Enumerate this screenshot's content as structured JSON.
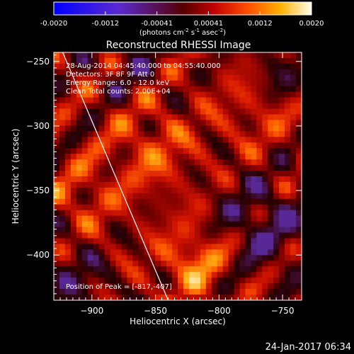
{
  "colorbar": {
    "ticks": [
      "-0.0020",
      "-0.0012",
      "-0.00041",
      "0.00041",
      "0.0012",
      "0.0020"
    ],
    "unit_label_parts": [
      "(photons cm",
      "-2",
      " s",
      "-1",
      " asec",
      "-2",
      ")"
    ]
  },
  "chart_data": {
    "type": "heatmap",
    "title": "Reconstructed RHESSI Image",
    "xlabel": "Heliocentric X (arcsec)",
    "ylabel": "Heliocentric Y (arcsec)",
    "xlim": [
      -930,
      -735
    ],
    "ylim": [
      -435,
      -243
    ],
    "x_ticks": [
      -900,
      -850,
      -800,
      -750
    ],
    "y_ticks": [
      -400,
      -350,
      -300,
      -250
    ],
    "colorscale": "rhessi-signed-hot",
    "value_range": [
      -0.002,
      0.002
    ],
    "limb_line": [
      [
        -923,
        -243
      ],
      [
        -840,
        -435
      ]
    ],
    "peak": [
      -817,
      -407
    ],
    "info_lines": [
      "28-Aug-2014 04:45:40.000 to 04:55:40.000",
      "Detectors: 3F 8F 9F  Att 0",
      "Energy Range: 6.0 - 12.0 keV",
      "Clean    Total counts: 2.00E+04"
    ],
    "peak_label": "Position of Peak = [-817,-407]",
    "footer_date": "24-Jan-2017 06:34"
  }
}
